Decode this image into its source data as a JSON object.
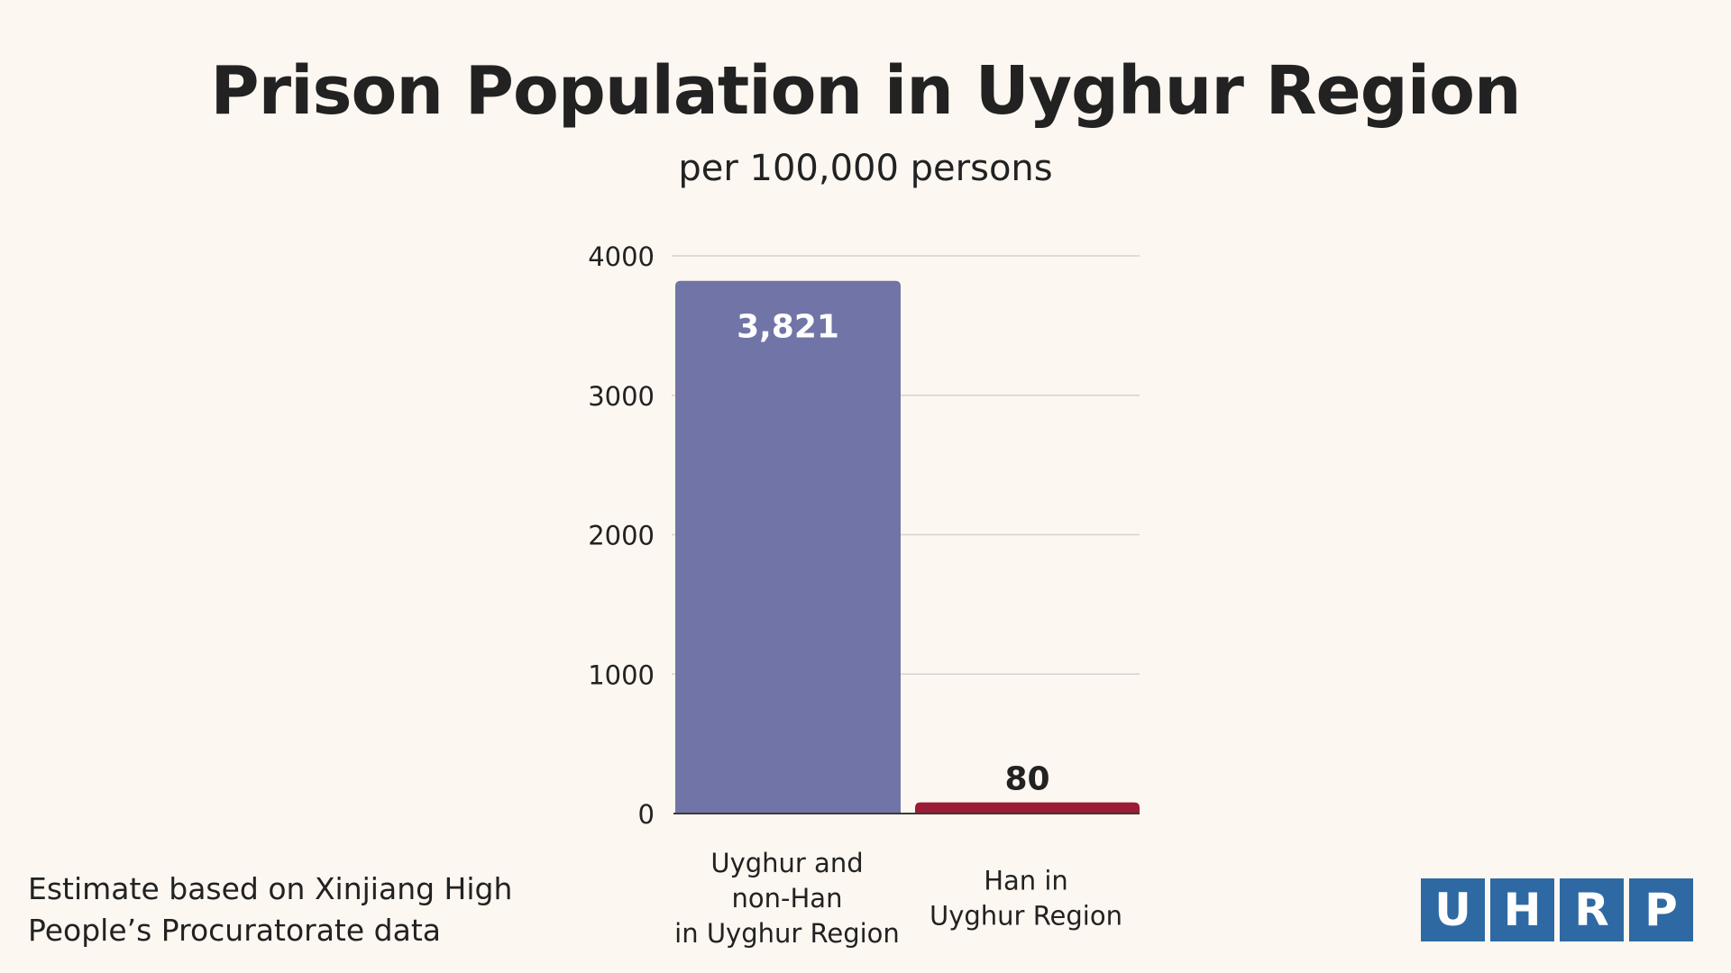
{
  "title": "Prison Population in Uyghur Region",
  "subtitle": "per 100,000 persons",
  "footnote": "Estimate based on Xinjiang High People’s Procuratorate data",
  "logo": {
    "letters": [
      "U",
      "H",
      "R",
      "P"
    ],
    "color": "#2f69a3"
  },
  "chart_data": {
    "type": "bar",
    "categories": [
      [
        "Uyghur and",
        "non-Han",
        "in Uyghur Region"
      ],
      [
        "Han in",
        "Uyghur Region"
      ]
    ],
    "values": [
      3821,
      80
    ],
    "value_labels": [
      "3,821",
      "80"
    ],
    "colors": [
      "#7174a6",
      "#9b1c34"
    ],
    "yticks": [
      0,
      1000,
      2000,
      3000,
      4000
    ],
    "ylim": [
      0,
      4000
    ],
    "grid": true,
    "legend": "none"
  }
}
